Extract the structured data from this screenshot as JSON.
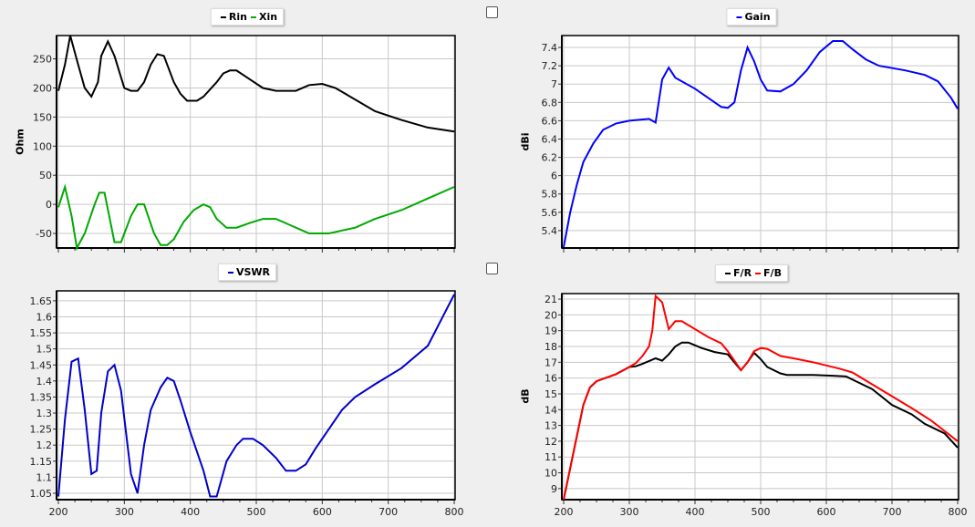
{
  "checkboxes": [
    {
      "checked": false
    },
    {
      "checked": false
    }
  ],
  "chart_data": [
    {
      "type": "line",
      "ylabel": "Ohm",
      "xlim": [
        200,
        800
      ],
      "ylim": [
        -75,
        290
      ],
      "yticks": [
        -50,
        0,
        50,
        100,
        150,
        200,
        250
      ],
      "ytick_labels": [
        "-50",
        "0",
        "50",
        "100",
        "150",
        "200",
        "250"
      ],
      "xticks": [
        200,
        300,
        400,
        500,
        600,
        700,
        800
      ],
      "xtick_labels": [],
      "grid": true,
      "legend": "top-center",
      "series": [
        {
          "name": "Rin",
          "color": "#000000",
          "points": [
            [
              200,
              195
            ],
            [
              210,
              240
            ],
            [
              218,
              290
            ],
            [
              230,
              240
            ],
            [
              240,
              200
            ],
            [
              250,
              185
            ],
            [
              260,
              210
            ],
            [
              265,
              255
            ],
            [
              275,
              280
            ],
            [
              285,
              255
            ],
            [
              300,
              200
            ],
            [
              310,
              195
            ],
            [
              320,
              195
            ],
            [
              330,
              210
            ],
            [
              340,
              240
            ],
            [
              350,
              258
            ],
            [
              360,
              255
            ],
            [
              375,
              210
            ],
            [
              385,
              190
            ],
            [
              395,
              178
            ],
            [
              410,
              178
            ],
            [
              420,
              185
            ],
            [
              440,
              210
            ],
            [
              450,
              225
            ],
            [
              460,
              230
            ],
            [
              470,
              230
            ],
            [
              490,
              215
            ],
            [
              510,
              200
            ],
            [
              530,
              195
            ],
            [
              560,
              195
            ],
            [
              580,
              205
            ],
            [
              600,
              207
            ],
            [
              620,
              200
            ],
            [
              650,
              180
            ],
            [
              680,
              160
            ],
            [
              720,
              145
            ],
            [
              760,
              132
            ],
            [
              800,
              125
            ]
          ]
        },
        {
          "name": "Xin",
          "color": "#00aa00",
          "points": [
            [
              200,
              -5
            ],
            [
              210,
              30
            ],
            [
              220,
              -20
            ],
            [
              228,
              -75
            ],
            [
              240,
              -50
            ],
            [
              255,
              0
            ],
            [
              262,
              20
            ],
            [
              270,
              20
            ],
            [
              285,
              -65
            ],
            [
              295,
              -65
            ],
            [
              310,
              -20
            ],
            [
              320,
              0
            ],
            [
              330,
              0
            ],
            [
              345,
              -50
            ],
            [
              355,
              -70
            ],
            [
              365,
              -70
            ],
            [
              375,
              -60
            ],
            [
              390,
              -30
            ],
            [
              405,
              -10
            ],
            [
              420,
              0
            ],
            [
              430,
              -5
            ],
            [
              440,
              -25
            ],
            [
              455,
              -40
            ],
            [
              470,
              -40
            ],
            [
              490,
              -32
            ],
            [
              510,
              -25
            ],
            [
              530,
              -25
            ],
            [
              550,
              -35
            ],
            [
              570,
              -45
            ],
            [
              580,
              -50
            ],
            [
              610,
              -50
            ],
            [
              630,
              -45
            ],
            [
              650,
              -40
            ],
            [
              680,
              -25
            ],
            [
              720,
              -10
            ],
            [
              760,
              10
            ],
            [
              800,
              30
            ]
          ]
        }
      ]
    },
    {
      "type": "line",
      "ylabel": "dBi",
      "xlim": [
        200,
        800
      ],
      "ylim": [
        5.21,
        7.53
      ],
      "yticks": [
        5.4,
        5.6,
        5.8,
        6,
        6.2,
        6.4,
        6.6,
        6.8,
        7,
        7.2,
        7.4
      ],
      "ytick_labels": [
        "5.4",
        "5.6",
        "5.8",
        "6",
        "6.2",
        "6.4",
        "6.6",
        "6.8",
        "7",
        "7.2",
        "7.4"
      ],
      "xticks": [
        200,
        300,
        400,
        500,
        600,
        700,
        800
      ],
      "xtick_labels": [],
      "grid": true,
      "legend": "top-center",
      "series": [
        {
          "name": "Gain",
          "color": "#0000ff",
          "points": [
            [
              200,
              5.22
            ],
            [
              210,
              5.6
            ],
            [
              220,
              5.9
            ],
            [
              230,
              6.15
            ],
            [
              245,
              6.35
            ],
            [
              260,
              6.5
            ],
            [
              280,
              6.57
            ],
            [
              300,
              6.6
            ],
            [
              330,
              6.62
            ],
            [
              340,
              6.58
            ],
            [
              350,
              7.05
            ],
            [
              360,
              7.18
            ],
            [
              370,
              7.07
            ],
            [
              400,
              6.95
            ],
            [
              420,
              6.85
            ],
            [
              440,
              6.75
            ],
            [
              450,
              6.74
            ],
            [
              460,
              6.8
            ],
            [
              470,
              7.15
            ],
            [
              480,
              7.4
            ],
            [
              490,
              7.25
            ],
            [
              500,
              7.05
            ],
            [
              510,
              6.93
            ],
            [
              530,
              6.92
            ],
            [
              550,
              7.0
            ],
            [
              570,
              7.15
            ],
            [
              590,
              7.35
            ],
            [
              610,
              7.47
            ],
            [
              625,
              7.47
            ],
            [
              640,
              7.38
            ],
            [
              660,
              7.27
            ],
            [
              680,
              7.2
            ],
            [
              720,
              7.15
            ],
            [
              750,
              7.1
            ],
            [
              770,
              7.03
            ],
            [
              790,
              6.85
            ],
            [
              800,
              6.73
            ]
          ]
        }
      ]
    },
    {
      "type": "line",
      "ylabel": "",
      "xlim": [
        200,
        800
      ],
      "ylim": [
        1.03,
        1.681
      ],
      "yticks": [
        1.05,
        1.1,
        1.15,
        1.2,
        1.25,
        1.3,
        1.35,
        1.4,
        1.45,
        1.5,
        1.55,
        1.6,
        1.65
      ],
      "ytick_labels": [
        "1.05",
        "1.1",
        "1.15",
        "1.2",
        "1.25",
        "1.3",
        "1.35",
        "1.4",
        "1.45",
        "1.5",
        "1.55",
        "1.6",
        "1.65"
      ],
      "xticks": [
        200,
        300,
        400,
        500,
        600,
        700,
        800
      ],
      "xtick_labels": [
        "200",
        "300",
        "400",
        "500",
        "600",
        "700",
        "800"
      ],
      "grid": true,
      "legend": "top-center",
      "series": [
        {
          "name": "VSWR",
          "color": "#0000cc",
          "points": [
            [
              200,
              1.04
            ],
            [
              210,
              1.28
            ],
            [
              220,
              1.46
            ],
            [
              230,
              1.47
            ],
            [
              240,
              1.31
            ],
            [
              250,
              1.11
            ],
            [
              258,
              1.12
            ],
            [
              265,
              1.3
            ],
            [
              275,
              1.43
            ],
            [
              285,
              1.45
            ],
            [
              295,
              1.37
            ],
            [
              310,
              1.11
            ],
            [
              320,
              1.05
            ],
            [
              330,
              1.2
            ],
            [
              340,
              1.31
            ],
            [
              355,
              1.38
            ],
            [
              365,
              1.41
            ],
            [
              375,
              1.4
            ],
            [
              385,
              1.34
            ],
            [
              400,
              1.24
            ],
            [
              420,
              1.12
            ],
            [
              430,
              1.04
            ],
            [
              440,
              1.04
            ],
            [
              455,
              1.15
            ],
            [
              470,
              1.2
            ],
            [
              480,
              1.22
            ],
            [
              495,
              1.22
            ],
            [
              510,
              1.2
            ],
            [
              530,
              1.16
            ],
            [
              545,
              1.12
            ],
            [
              560,
              1.12
            ],
            [
              575,
              1.14
            ],
            [
              590,
              1.19
            ],
            [
              610,
              1.25
            ],
            [
              630,
              1.31
            ],
            [
              650,
              1.35
            ],
            [
              680,
              1.39
            ],
            [
              720,
              1.44
            ],
            [
              760,
              1.51
            ],
            [
              800,
              1.67
            ]
          ]
        }
      ]
    },
    {
      "type": "line",
      "ylabel": "dB",
      "xlim": [
        200,
        800
      ],
      "ylim": [
        8.3,
        21.35
      ],
      "yticks": [
        9,
        10,
        11,
        12,
        13,
        14,
        15,
        16,
        17,
        18,
        19,
        20,
        21
      ],
      "ytick_labels": [
        "9",
        "10",
        "11",
        "12",
        "13",
        "14",
        "15",
        "16",
        "17",
        "18",
        "19",
        "20",
        "21"
      ],
      "xticks": [
        200,
        300,
        400,
        500,
        600,
        700,
        800
      ],
      "xtick_labels": [
        "200",
        "300",
        "400",
        "500",
        "600",
        "700",
        "800"
      ],
      "grid": true,
      "legend": "top-center",
      "series": [
        {
          "name": "F/R",
          "color": "#000000",
          "points": [
            [
              200,
              8.3
            ],
            [
              230,
              14.3
            ],
            [
              240,
              15.4
            ],
            [
              250,
              15.8
            ],
            [
              270,
              16.1
            ],
            [
              280,
              16.25
            ],
            [
              300,
              16.7
            ],
            [
              310,
              16.75
            ],
            [
              320,
              16.9
            ],
            [
              340,
              17.25
            ],
            [
              350,
              17.1
            ],
            [
              360,
              17.5
            ],
            [
              370,
              18.0
            ],
            [
              380,
              18.25
            ],
            [
              390,
              18.25
            ],
            [
              410,
              17.9
            ],
            [
              430,
              17.65
            ],
            [
              450,
              17.5
            ],
            [
              470,
              16.5
            ],
            [
              480,
              17.0
            ],
            [
              490,
              17.6
            ],
            [
              500,
              17.2
            ],
            [
              510,
              16.7
            ],
            [
              530,
              16.3
            ],
            [
              540,
              16.2
            ],
            [
              580,
              16.2
            ],
            [
              610,
              16.15
            ],
            [
              630,
              16.1
            ],
            [
              640,
              15.9
            ],
            [
              670,
              15.3
            ],
            [
              700,
              14.3
            ],
            [
              730,
              13.7
            ],
            [
              750,
              13.1
            ],
            [
              780,
              12.5
            ],
            [
              800,
              11.6
            ]
          ]
        },
        {
          "name": "F/B",
          "color": "#ff0000",
          "points": [
            [
              200,
              8.3
            ],
            [
              230,
              14.3
            ],
            [
              240,
              15.4
            ],
            [
              250,
              15.8
            ],
            [
              270,
              16.1
            ],
            [
              280,
              16.25
            ],
            [
              300,
              16.7
            ],
            [
              310,
              16.95
            ],
            [
              320,
              17.4
            ],
            [
              330,
              18.0
            ],
            [
              335,
              19.0
            ],
            [
              340,
              21.2
            ],
            [
              350,
              20.8
            ],
            [
              360,
              19.1
            ],
            [
              370,
              19.6
            ],
            [
              380,
              19.6
            ],
            [
              400,
              19.1
            ],
            [
              420,
              18.6
            ],
            [
              440,
              18.2
            ],
            [
              450,
              17.7
            ],
            [
              470,
              16.5
            ],
            [
              480,
              17.0
            ],
            [
              490,
              17.7
            ],
            [
              500,
              17.9
            ],
            [
              510,
              17.85
            ],
            [
              530,
              17.4
            ],
            [
              550,
              17.25
            ],
            [
              580,
              17.0
            ],
            [
              600,
              16.8
            ],
            [
              620,
              16.6
            ],
            [
              640,
              16.35
            ],
            [
              670,
              15.6
            ],
            [
              700,
              14.85
            ],
            [
              730,
              14.1
            ],
            [
              760,
              13.3
            ],
            [
              800,
              12.0
            ]
          ]
        }
      ]
    }
  ]
}
